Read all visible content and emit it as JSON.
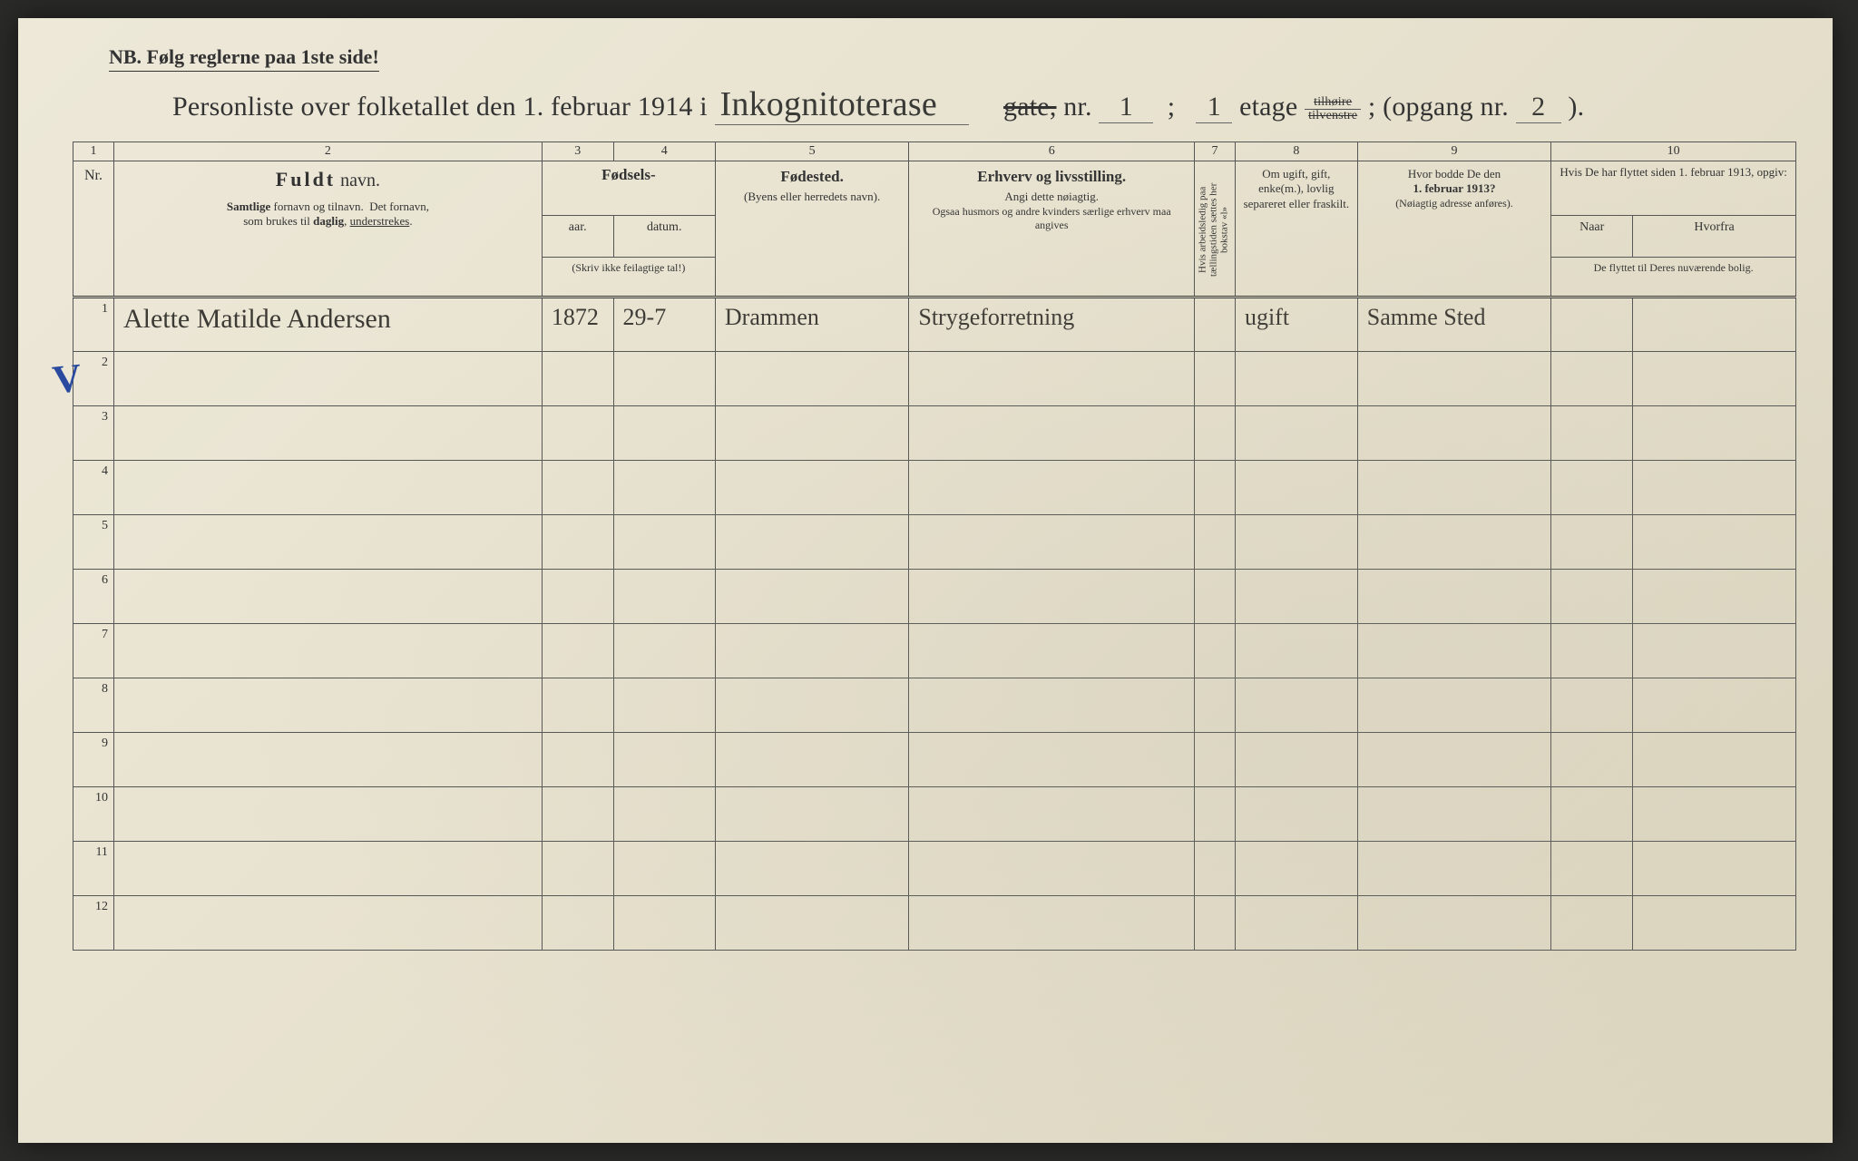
{
  "header": {
    "nb": "NB.  Følg reglerne paa 1ste side!",
    "title_pre": "Personliste over folketallet den 1. februar 1914 i",
    "street_hand": "Inkognitoterase",
    "gate_label": "gate,",
    "nr_label": "nr.",
    "nr_value": "1",
    "etage_label": "etage",
    "etage_value": "1",
    "frac_top": "tilhøire",
    "frac_bot": "tilvenstre",
    "opgang_label": "; (opgang nr.",
    "opgang_value": "2",
    "close": ")."
  },
  "colnums": [
    "1",
    "2",
    "3",
    "4",
    "5",
    "6",
    "7",
    "8",
    "9",
    "10"
  ],
  "columns": {
    "nr": "Nr.",
    "navn_big": "Fuldt",
    "navn_suffix": " navn.",
    "navn_sub1": "Samtlige fornavn og tilnavn.  Det fornavn,",
    "navn_sub2": "som brukes til daglig, understrekes.",
    "fodsels": "Fødsels-",
    "aar": "aar.",
    "datum": "datum.",
    "fodsels_note": "(Skriv ikke feilagtige tal!)",
    "fodested": "Fødested.",
    "fodested_sub": "(Byens eller herredets navn).",
    "erhverv": "Erhverv og livsstilling.",
    "erhverv_sub1": "Angi dette nøiagtig.",
    "erhverv_sub2": "Ogsaa husmors og andre kvinders særlige erhverv maa angives",
    "col7_vert": "Hvis arbeidsledig paa tællingstiden sættes her bokstav «l»",
    "col8": "Om ugift, gift, enke(m.), lovlig separeret eller fraskilt.",
    "col9_top": "Hvor bodde De den",
    "col9_bold": "1. februar 1913?",
    "col9_sub": "(Nøiagtig adresse anføres).",
    "col10_top": "Hvis De har flyttet siden 1. februar 1913, opgiv:",
    "col10a": "Naar",
    "col10b": "Hvorfra",
    "col10_bot": "De flyttet til Deres nuværende bolig."
  },
  "rows": [
    {
      "nr": "1",
      "navn": "Alette Matilde Andersen",
      "aar": "1872",
      "datum": "29-7",
      "fodested": "Drammen",
      "erhverv": "Strygeforretning",
      "c7": "",
      "c8": "ugift",
      "c9": "Samme Sted",
      "c10a": "",
      "c10b": ""
    },
    {
      "nr": "2",
      "navn": "",
      "aar": "",
      "datum": "",
      "fodested": "",
      "erhverv": "",
      "c7": "",
      "c8": "",
      "c9": "",
      "c10a": "",
      "c10b": ""
    },
    {
      "nr": "3",
      "navn": "",
      "aar": "",
      "datum": "",
      "fodested": "",
      "erhverv": "",
      "c7": "",
      "c8": "",
      "c9": "",
      "c10a": "",
      "c10b": ""
    },
    {
      "nr": "4",
      "navn": "",
      "aar": "",
      "datum": "",
      "fodested": "",
      "erhverv": "",
      "c7": "",
      "c8": "",
      "c9": "",
      "c10a": "",
      "c10b": ""
    },
    {
      "nr": "5",
      "navn": "",
      "aar": "",
      "datum": "",
      "fodested": "",
      "erhverv": "",
      "c7": "",
      "c8": "",
      "c9": "",
      "c10a": "",
      "c10b": ""
    },
    {
      "nr": "6",
      "navn": "",
      "aar": "",
      "datum": "",
      "fodested": "",
      "erhverv": "",
      "c7": "",
      "c8": "",
      "c9": "",
      "c10a": "",
      "c10b": ""
    },
    {
      "nr": "7",
      "navn": "",
      "aar": "",
      "datum": "",
      "fodested": "",
      "erhverv": "",
      "c7": "",
      "c8": "",
      "c9": "",
      "c10a": "",
      "c10b": ""
    },
    {
      "nr": "8",
      "navn": "",
      "aar": "",
      "datum": "",
      "fodested": "",
      "erhverv": "",
      "c7": "",
      "c8": "",
      "c9": "",
      "c10a": "",
      "c10b": ""
    },
    {
      "nr": "9",
      "navn": "",
      "aar": "",
      "datum": "",
      "fodested": "",
      "erhverv": "",
      "c7": "",
      "c8": "",
      "c9": "",
      "c10a": "",
      "c10b": ""
    },
    {
      "nr": "10",
      "navn": "",
      "aar": "",
      "datum": "",
      "fodested": "",
      "erhverv": "",
      "c7": "",
      "c8": "",
      "c9": "",
      "c10a": "",
      "c10b": ""
    },
    {
      "nr": "11",
      "navn": "",
      "aar": "",
      "datum": "",
      "fodested": "",
      "erhverv": "",
      "c7": "",
      "c8": "",
      "c9": "",
      "c10a": "",
      "c10b": ""
    },
    {
      "nr": "12",
      "navn": "",
      "aar": "",
      "datum": "",
      "fodested": "",
      "erhverv": "",
      "c7": "",
      "c8": "",
      "c9": "",
      "c10a": "",
      "c10b": ""
    }
  ],
  "checkmark": "V",
  "styling": {
    "paper_bg": "#e8e3d0",
    "ink": "#333333",
    "hand_color": "#3c3a34",
    "check_color": "#2a4aa0",
    "border_color": "#555555"
  }
}
